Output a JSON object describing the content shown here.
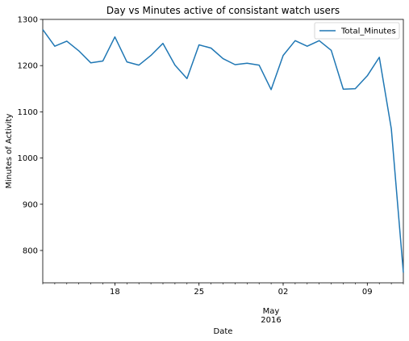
{
  "chart_data": {
    "type": "line",
    "title": "Day vs Minutes active of consistant watch users",
    "xlabel": "Date",
    "ylabel": "Minutes of Activity",
    "x_tick_labels": [
      "18",
      "25",
      "02",
      "09"
    ],
    "x_tick_dates": [
      "2016-04-18",
      "2016-04-25",
      "2016-05-02",
      "2016-05-09"
    ],
    "x_secondary_label": "May",
    "x_secondary_label_year": "2016",
    "xlim": [
      "2016-04-12",
      "2016-05-12"
    ],
    "ylim": [
      730,
      1300
    ],
    "y_ticks": [
      800,
      900,
      1000,
      1100,
      1200,
      1300
    ],
    "legend": "top-right",
    "grid": false,
    "series": [
      {
        "name": "Total_Minutes",
        "color": "#1f77b4",
        "x": [
          "2016-04-12",
          "2016-04-13",
          "2016-04-14",
          "2016-04-15",
          "2016-04-16",
          "2016-04-17",
          "2016-04-18",
          "2016-04-19",
          "2016-04-20",
          "2016-04-21",
          "2016-04-22",
          "2016-04-23",
          "2016-04-24",
          "2016-04-25",
          "2016-04-26",
          "2016-04-27",
          "2016-04-28",
          "2016-04-29",
          "2016-04-30",
          "2016-05-01",
          "2016-05-02",
          "2016-05-03",
          "2016-05-04",
          "2016-05-05",
          "2016-05-06",
          "2016-05-07",
          "2016-05-08",
          "2016-05-09",
          "2016-05-10",
          "2016-05-11",
          "2016-05-12"
        ],
        "values": [
          1278,
          1242,
          1253,
          1232,
          1206,
          1210,
          1262,
          1208,
          1201,
          1222,
          1248,
          1201,
          1172,
          1245,
          1238,
          1215,
          1202,
          1205,
          1201,
          1148,
          1222,
          1254,
          1242,
          1254,
          1233,
          1149,
          1150,
          1178,
          1218,
          1063,
          752
        ]
      }
    ]
  }
}
